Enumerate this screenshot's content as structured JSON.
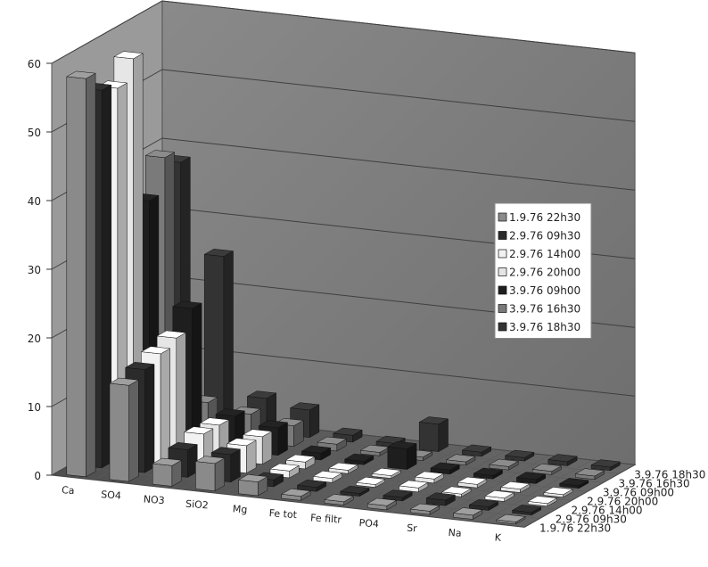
{
  "chart_data": {
    "type": "bar",
    "subtype": "3d-clustered-column",
    "title": "",
    "xlabel": "",
    "ylabel": "",
    "ylim": [
      0,
      60
    ],
    "yticks": [
      0,
      10,
      20,
      30,
      40,
      50,
      60
    ],
    "grid": true,
    "legend_position": "right",
    "categories": [
      "Ca",
      "SO4",
      "NO3",
      "SiO2",
      "Mg",
      "Fe tot",
      "Fe filtr",
      "PO4",
      "Sr",
      "Na",
      "K"
    ],
    "series": [
      {
        "name": "1.9.76 22h30",
        "color": "#8a8a8a",
        "values": [
          58,
          14,
          3,
          4,
          2,
          0.6,
          0.5,
          0.6,
          0.5,
          0.6,
          0.3
        ]
      },
      {
        "name": "2.9.76 09h30",
        "color": "#2b2b2b",
        "values": [
          55,
          15,
          4,
          4,
          1,
          0.6,
          0.4,
          0.5,
          0.8,
          0.5,
          0.4
        ]
      },
      {
        "name": "2.9.76 14h00",
        "color": "#f2f2f2",
        "values": [
          54,
          16,
          5,
          4,
          1,
          0.6,
          0.4,
          0.6,
          0.4,
          0.5,
          0.4
        ]
      },
      {
        "name": "2.9.76 20h00",
        "color": "#e6e6e6",
        "values": [
          57,
          17,
          5,
          4,
          1,
          0.5,
          0.4,
          0.6,
          0.5,
          0.5,
          0.4
        ]
      },
      {
        "name": "3.9.76 09h00",
        "color": "#1e1e1e",
        "values": [
          35,
          20,
          5,
          4,
          1,
          0.5,
          3,
          0.6,
          0.5,
          0.6,
          0.4
        ]
      },
      {
        "name": "3.9.76 16h30",
        "color": "#7a7a7a",
        "values": [
          40,
          5,
          4,
          3,
          1,
          0.5,
          0.5,
          0.5,
          0.5,
          0.5,
          0.5
        ]
      },
      {
        "name": "3.9.76 18h30",
        "color": "#333333",
        "values": [
          38,
          25,
          5,
          4,
          1,
          0.5,
          4,
          0.6,
          0.5,
          0.6,
          0.5
        ]
      }
    ],
    "category_labels": [
      "Ca",
      "SO4",
      "NO3",
      "SiO2",
      "Mg",
      "Fe tot",
      "Fe filtr",
      "PO4",
      "Sr",
      "Na",
      "K"
    ],
    "depth_labels": [
      "1.9.76 22h30",
      "2.9.76 09h30",
      "2.9.76 14h00",
      "2.9.76 20h00",
      "3.9.76 09h00",
      "3.9.76 16h30",
      "3.9.76 18h30"
    ],
    "legend": [
      "1.9.76 22h30",
      "2.9.76 09h30",
      "2.9.76 14h00",
      "2.9.76 20h00",
      "3.9.76 09h00",
      "3.9.76 16h30",
      "3.9.76 18h30"
    ]
  }
}
